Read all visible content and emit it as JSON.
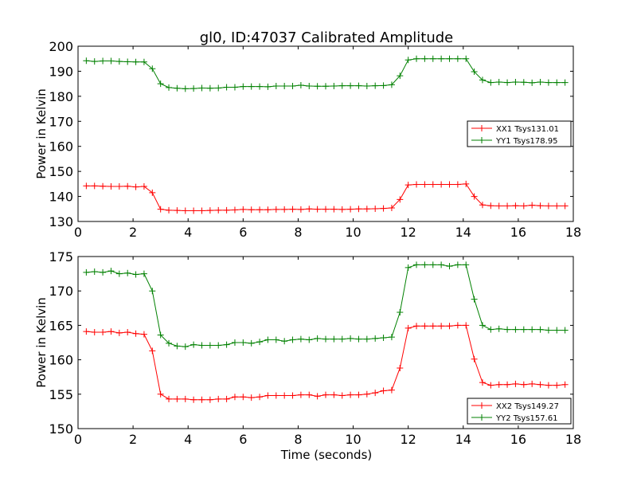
{
  "figure": {
    "title": "gl0, ID:47037 Calibrated Amplitude"
  },
  "chart_data": [
    {
      "type": "line",
      "title": "gl0, ID:47037 Calibrated Amplitude",
      "xlabel": "",
      "ylabel": "Power in Kelvin",
      "xlim": [
        0,
        18
      ],
      "ylim": [
        130,
        200
      ],
      "xticks": [
        0,
        2,
        4,
        6,
        8,
        10,
        12,
        14,
        16,
        18
      ],
      "yticks": [
        130,
        140,
        150,
        160,
        170,
        180,
        190,
        200
      ],
      "grid": false,
      "legend_position": "center-right",
      "x": [
        0.3,
        0.6,
        0.9,
        1.2,
        1.5,
        1.8,
        2.1,
        2.4,
        2.7,
        3.0,
        3.3,
        3.6,
        3.9,
        4.2,
        4.5,
        4.8,
        5.1,
        5.4,
        5.7,
        6.0,
        6.3,
        6.6,
        6.9,
        7.2,
        7.5,
        7.8,
        8.1,
        8.4,
        8.7,
        9.0,
        9.3,
        9.6,
        9.9,
        10.2,
        10.5,
        10.8,
        11.1,
        11.4,
        11.7,
        12.0,
        12.3,
        12.6,
        12.9,
        13.2,
        13.5,
        13.8,
        14.1,
        14.4,
        14.7,
        15.0,
        15.3,
        15.6,
        15.9,
        16.2,
        16.5,
        16.8,
        17.1,
        17.4,
        17.7
      ],
      "series": [
        {
          "name": "XX1 Tsys131.01",
          "color": "#ff0000",
          "values": [
            144.2,
            144.2,
            144.1,
            144.0,
            144.0,
            144.1,
            143.8,
            144.0,
            141.5,
            134.9,
            134.5,
            134.4,
            134.3,
            134.3,
            134.3,
            134.4,
            134.5,
            134.5,
            134.6,
            134.8,
            134.7,
            134.7,
            134.7,
            134.8,
            134.8,
            134.9,
            134.8,
            135.0,
            134.9,
            134.9,
            134.9,
            134.8,
            134.9,
            135.0,
            135.0,
            135.1,
            135.2,
            135.4,
            138.8,
            144.6,
            144.8,
            144.8,
            144.8,
            144.8,
            144.8,
            144.8,
            145.0,
            140.0,
            136.6,
            136.3,
            136.2,
            136.2,
            136.3,
            136.2,
            136.5,
            136.3,
            136.2,
            136.2,
            136.2
          ]
        },
        {
          "name": "YY1 Tsys178.95",
          "color": "#008000",
          "values": [
            194.2,
            193.9,
            194.1,
            194.1,
            193.9,
            193.8,
            193.7,
            193.7,
            191.0,
            185.0,
            183.5,
            183.2,
            183.0,
            183.1,
            183.3,
            183.2,
            183.3,
            183.6,
            183.6,
            183.9,
            183.9,
            183.9,
            183.8,
            184.1,
            184.1,
            184.1,
            184.4,
            184.1,
            184.0,
            184.0,
            184.1,
            184.2,
            184.2,
            184.2,
            184.1,
            184.2,
            184.3,
            184.6,
            188.2,
            194.5,
            195.0,
            195.0,
            195.0,
            195.0,
            195.0,
            195.0,
            195.0,
            189.8,
            186.5,
            185.5,
            185.7,
            185.5,
            185.7,
            185.6,
            185.4,
            185.7,
            185.5,
            185.5,
            185.5
          ]
        }
      ]
    },
    {
      "type": "line",
      "title": "",
      "xlabel": "Time (seconds)",
      "ylabel": "Power in Kelvin",
      "xlim": [
        0,
        18
      ],
      "ylim": [
        150,
        175
      ],
      "xticks": [
        0,
        2,
        4,
        6,
        8,
        10,
        12,
        14,
        16,
        18
      ],
      "yticks": [
        150,
        155,
        160,
        165,
        170,
        175
      ],
      "grid": false,
      "legend_position": "bottom-right",
      "x": [
        0.3,
        0.6,
        0.9,
        1.2,
        1.5,
        1.8,
        2.1,
        2.4,
        2.7,
        3.0,
        3.3,
        3.6,
        3.9,
        4.2,
        4.5,
        4.8,
        5.1,
        5.4,
        5.7,
        6.0,
        6.3,
        6.6,
        6.9,
        7.2,
        7.5,
        7.8,
        8.1,
        8.4,
        8.7,
        9.0,
        9.3,
        9.6,
        9.9,
        10.2,
        10.5,
        10.8,
        11.1,
        11.4,
        11.7,
        12.0,
        12.3,
        12.6,
        12.9,
        13.2,
        13.5,
        13.8,
        14.1,
        14.4,
        14.7,
        15.0,
        15.3,
        15.6,
        15.9,
        16.2,
        16.5,
        16.8,
        17.1,
        17.4,
        17.7
      ],
      "series": [
        {
          "name": "XX2 Tsys149.27",
          "color": "#ff0000",
          "values": [
            164.1,
            164.0,
            164.0,
            164.1,
            163.9,
            164.0,
            163.8,
            163.7,
            161.3,
            155.0,
            154.3,
            154.3,
            154.3,
            154.2,
            154.2,
            154.2,
            154.3,
            154.3,
            154.6,
            154.6,
            154.5,
            154.6,
            154.8,
            154.8,
            154.8,
            154.8,
            154.9,
            154.9,
            154.7,
            154.9,
            154.9,
            154.8,
            154.9,
            154.9,
            155.0,
            155.2,
            155.5,
            155.6,
            158.8,
            164.6,
            164.9,
            164.9,
            164.9,
            164.9,
            164.9,
            165.0,
            165.0,
            160.1,
            156.7,
            156.3,
            156.4,
            156.4,
            156.5,
            156.4,
            156.5,
            156.4,
            156.3,
            156.3,
            156.4
          ]
        },
        {
          "name": "YY2 Tsys157.61",
          "color": "#008000",
          "values": [
            172.7,
            172.8,
            172.7,
            172.9,
            172.5,
            172.6,
            172.4,
            172.5,
            170.0,
            163.6,
            162.4,
            162.0,
            161.9,
            162.2,
            162.1,
            162.1,
            162.1,
            162.2,
            162.5,
            162.5,
            162.4,
            162.6,
            162.9,
            162.9,
            162.7,
            162.9,
            163.0,
            162.9,
            163.1,
            163.0,
            163.0,
            163.0,
            163.1,
            163.0,
            163.0,
            163.1,
            163.2,
            163.3,
            166.9,
            173.4,
            173.8,
            173.8,
            173.8,
            173.8,
            173.6,
            173.8,
            173.8,
            168.8,
            165.0,
            164.4,
            164.5,
            164.4,
            164.4,
            164.4,
            164.4,
            164.4,
            164.3,
            164.3,
            164.3
          ]
        }
      ]
    }
  ]
}
